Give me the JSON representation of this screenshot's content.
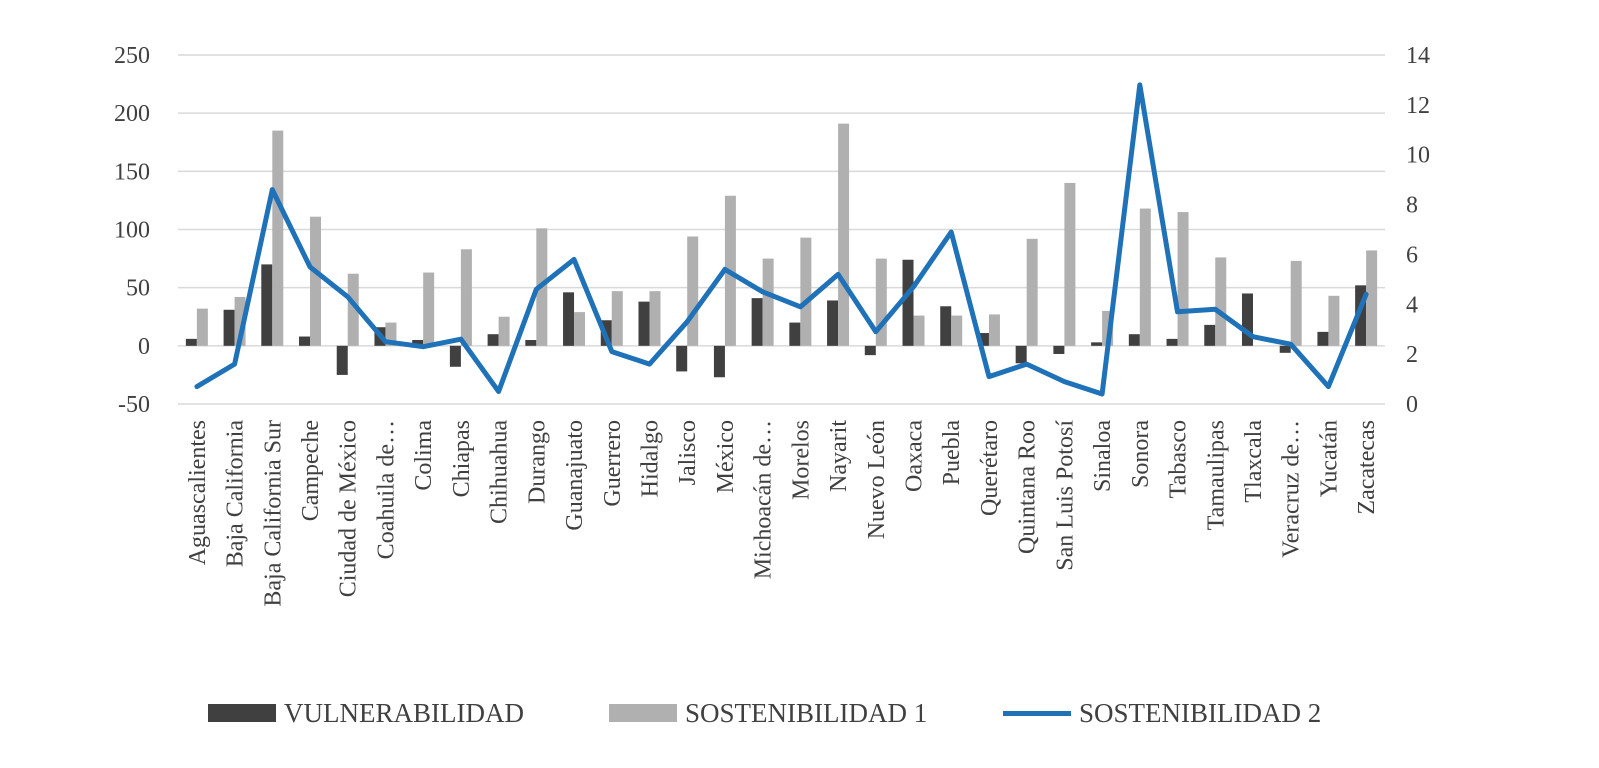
{
  "chart_data": {
    "type": "bar",
    "categories": [
      "Aguascalientes",
      "Baja California",
      "Baja California Sur",
      "Campeche",
      "Ciudad de México",
      "Coahuila de…",
      "Colima",
      "Chiapas",
      "Chihuahua",
      "Durango",
      "Guanajuato",
      "Guerrero",
      "Hidalgo",
      "Jalisco",
      "México",
      "Michoacán de…",
      "Morelos",
      "Nayarit",
      "Nuevo León",
      "Oaxaca",
      "Puebla",
      "Querétaro",
      "Quintana Roo",
      "San Luis Potosí",
      "Sinaloa",
      "Sonora",
      "Tabasco",
      "Tamaulipas",
      "Tlaxcala",
      "Veracruz de…",
      "Yucatán",
      "Zacatecas"
    ],
    "series": [
      {
        "name": "VULNERABILIDAD",
        "kind": "bar",
        "axis": "left",
        "color": "#404040",
        "values": [
          6,
          31,
          70,
          8,
          -25,
          16,
          5,
          -18,
          10,
          5,
          46,
          22,
          38,
          -22,
          -27,
          41,
          20,
          39,
          -8,
          74,
          34,
          11,
          -15,
          -7,
          3,
          10,
          6,
          18,
          45,
          -6,
          12,
          52
        ]
      },
      {
        "name": "SOSTENIBILIDAD 1",
        "kind": "bar",
        "axis": "left",
        "color": "#b0b0b0",
        "values": [
          32,
          42,
          185,
          111,
          62,
          20,
          63,
          83,
          25,
          101,
          29,
          47,
          47,
          94,
          129,
          75,
          93,
          191,
          75,
          26,
          26,
          27,
          92,
          140,
          30,
          118,
          115,
          76,
          0,
          73,
          43,
          82
        ]
      },
      {
        "name": "SOSTENIBILIDAD 2",
        "kind": "line",
        "axis": "right",
        "color": "#1f72b8",
        "values": [
          0.7,
          1.6,
          8.6,
          5.5,
          4.3,
          2.5,
          2.3,
          2.6,
          0.5,
          4.6,
          5.8,
          2.1,
          1.6,
          3.3,
          5.4,
          4.5,
          3.9,
          5.2,
          2.9,
          4.7,
          6.9,
          1.1,
          1.6,
          0.9,
          0.4,
          12.8,
          3.7,
          3.8,
          2.7,
          2.4,
          0.7,
          4.4
        ]
      }
    ],
    "y_left": {
      "ticks": [
        -50,
        0,
        50,
        100,
        150,
        200,
        250
      ],
      "labels": [
        "-50",
        "0",
        "50",
        "100",
        "150",
        "200",
        "250"
      ],
      "ylim": [
        -50,
        250
      ]
    },
    "y_right": {
      "ticks": [
        0,
        2,
        4,
        6,
        8,
        10,
        12,
        14
      ],
      "labels": [
        "0",
        "2",
        "4",
        "6",
        "8",
        "10",
        "12",
        "14"
      ],
      "ylim": [
        0,
        14
      ]
    },
    "grid": true,
    "legend_position": "bottom"
  }
}
